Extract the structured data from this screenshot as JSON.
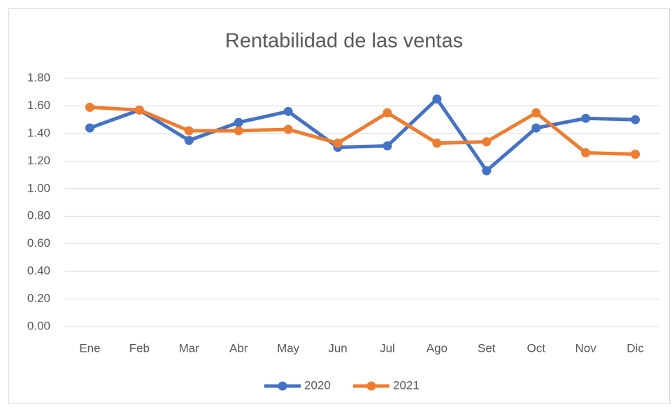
{
  "chart_data": {
    "type": "line",
    "title": "Rentabilidad de las ventas",
    "categories": [
      "Ene",
      "Feb",
      "Mar",
      "Abr",
      "May",
      "Jun",
      "Jul",
      "Ago",
      "Set",
      "Oct",
      "Nov",
      "Dic"
    ],
    "series": [
      {
        "name": "2020",
        "color": "#4472c4",
        "values": [
          1.44,
          1.57,
          1.35,
          1.48,
          1.56,
          1.3,
          1.31,
          1.65,
          1.13,
          1.44,
          1.51,
          1.5
        ]
      },
      {
        "name": "2021",
        "color": "#ed7d31",
        "values": [
          1.59,
          1.57,
          1.42,
          1.42,
          1.43,
          1.33,
          1.55,
          1.33,
          1.34,
          1.55,
          1.26,
          1.25
        ]
      }
    ],
    "ylim": [
      0,
      1.8
    ],
    "yticks": [
      {
        "value": 0,
        "label": "0.00"
      },
      {
        "value": 0.2,
        "label": "0.20"
      },
      {
        "value": 0.4,
        "label": "0.40"
      },
      {
        "value": 0.6,
        "label": "0.60"
      },
      {
        "value": 0.8,
        "label": "0.80"
      },
      {
        "value": 1,
        "label": "1.00"
      },
      {
        "value": 1.2,
        "label": "1.20"
      },
      {
        "value": 1.4,
        "label": "1.40"
      },
      {
        "value": 1.6,
        "label": "1.60"
      },
      {
        "value": 1.8,
        "label": "1.80"
      }
    ],
    "grid": true,
    "legend": "bottom"
  }
}
